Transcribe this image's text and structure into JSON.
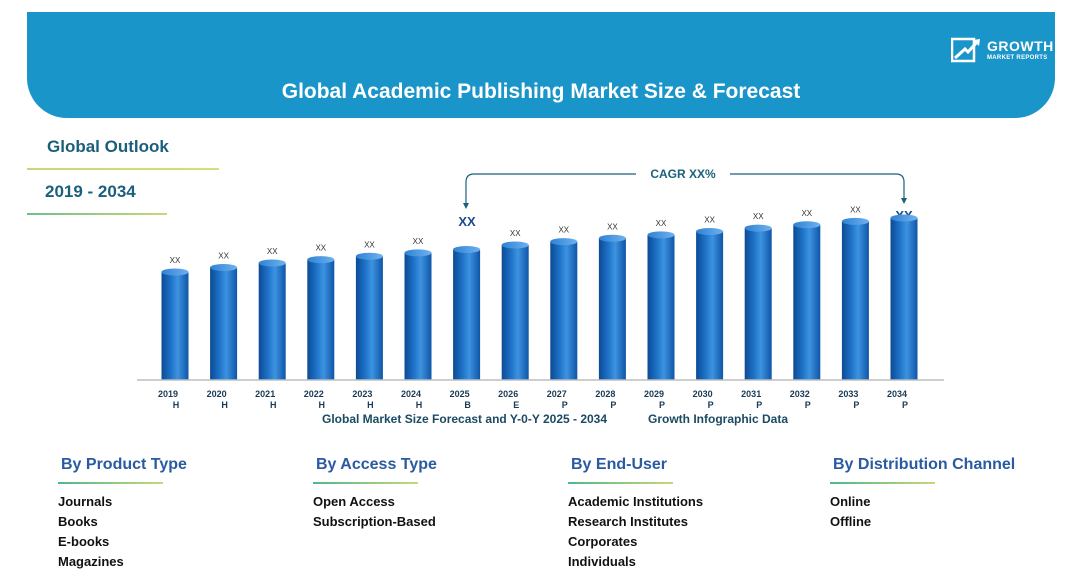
{
  "header": {
    "title": "Global Academic Publishing Market Size & Forecast",
    "logo_word": "GROWTH",
    "logo_sub": "MARKET REPORTS"
  },
  "outlook": {
    "title": "Global Outlook",
    "years": "2019 - 2034"
  },
  "chart_data": {
    "type": "bar",
    "title": "Global Academic Publishing Market Size & Forecast",
    "categories": [
      "2019",
      "2020",
      "2021",
      "2022",
      "2023",
      "2024",
      "2025",
      "2026",
      "2027",
      "2028",
      "2029",
      "2030",
      "2031",
      "2032",
      "2033",
      "2034"
    ],
    "category_codes": [
      "H",
      "H",
      "H",
      "H",
      "H",
      "H",
      "B",
      "E",
      "P",
      "P",
      "P",
      "P",
      "P",
      "P",
      "P",
      "P"
    ],
    "values": [
      48,
      50,
      52,
      53.5,
      55,
      56.5,
      58,
      60,
      61.5,
      63,
      64.5,
      66,
      67.5,
      69,
      70.5,
      72
    ],
    "data_labels": [
      "XX",
      "XX",
      "XX",
      "XX",
      "XX",
      "XX",
      "",
      "XX",
      "XX",
      "XX",
      "XX",
      "XX",
      "XX",
      "XX",
      "XX",
      ""
    ],
    "ylim": [
      0,
      80
    ],
    "grid": false,
    "cagr_label": "CAGR XX%",
    "cagr_start_label": "XX",
    "cagr_end_label": "XX",
    "bar_color": "#1e73c9",
    "xlabel": "",
    "ylabel": ""
  },
  "footer": {
    "left": "Global Market Size Forecast and Y-0-Y  2025 - 2034",
    "right": "Growth Infographic Data"
  },
  "categories": [
    {
      "heading": "By Product Type",
      "items": [
        "Journals",
        "Books",
        "E-books",
        "Magazines"
      ]
    },
    {
      "heading": "By Access Type",
      "items": [
        "Open Access",
        "Subscription-Based"
      ]
    },
    {
      "heading": "By End-User",
      "items": [
        "Academic Institutions",
        "Research Institutes",
        "Corporates",
        "Individuals"
      ]
    },
    {
      "heading": "By Distribution Channel",
      "items": [
        "Online",
        "Offline"
      ]
    }
  ]
}
